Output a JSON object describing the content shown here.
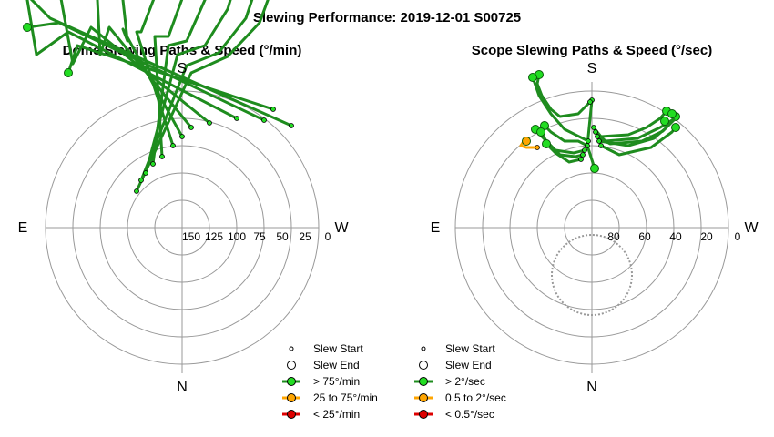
{
  "figure": {
    "title": "Slewing Performance: 2019-12-01 S00725"
  },
  "chart_data": [
    {
      "type": "polar-path",
      "title": "Dome Slewing Paths & Speed (°/min)",
      "compass": {
        "top": "S",
        "bottom": "N",
        "left": "E",
        "right": "W"
      },
      "radial_tick_labels": [
        "150",
        "125",
        "100",
        "75",
        "50",
        "25",
        "0"
      ],
      "grid": true,
      "legend": {
        "placement": "bottom-right",
        "entries": [
          {
            "label": "Slew Start",
            "marker": "small-open-circle"
          },
          {
            "label": "Slew End",
            "marker": "large-open-circle"
          },
          {
            "label": "> 75°/min",
            "color": "#1e8c1e",
            "marker_color": "#22dd22"
          },
          {
            "label": "25 to 75°/min",
            "color": "#ffa500",
            "marker_color": "#ffa500"
          },
          {
            "label": "< 25°/min",
            "color": "#dd0000",
            "marker_color": "#dd0000"
          }
        ]
      },
      "paths": [
        {
          "speed": "fast",
          "points": [
            [
              150,
              210
            ],
            [
              210,
              80
            ],
            [
              250,
              62
            ],
            [
              285,
              25
            ],
            [
              296,
              -5
            ]
          ]
        },
        {
          "speed": "fast",
          "points": [
            [
              155,
              198
            ],
            [
              205,
              72
            ],
            [
              240,
              58
            ],
            [
              270,
              20
            ],
            [
              285,
              -25
            ]
          ]
        },
        {
          "speed": "fast",
          "points": [
            [
              160,
              190
            ],
            [
              195,
              60
            ],
            [
              225,
              50
            ],
            [
              250,
              10
            ],
            [
              262,
              -30
            ]
          ]
        },
        {
          "speed": "fast",
          "points": [
            [
              168,
              180
            ],
            [
              185,
              50
            ],
            [
              205,
              45
            ],
            [
              225,
              0
            ],
            [
              240,
              -35
            ]
          ]
        },
        {
          "speed": "fast",
          "points": [
            [
              178,
              172
            ],
            [
              170,
              40
            ],
            [
              185,
              40
            ],
            [
              205,
              -15
            ],
            [
              220,
              -38
            ]
          ]
        },
        {
          "speed": "fast",
          "points": [
            [
              190,
              160
            ],
            [
              150,
              35
            ],
            [
              155,
              35
            ],
            [
              180,
              -30
            ],
            [
              195,
              -40
            ]
          ]
        },
        {
          "speed": "fast",
          "points": [
            [
              200,
              150
            ],
            [
              135,
              32
            ],
            [
              140,
              45
            ],
            [
              130,
              -45
            ]
          ]
        },
        {
          "speed": "fast",
          "points": [
            [
              210,
              140
            ],
            [
              120,
              30
            ],
            [
              110,
              60
            ],
            [
              105,
              -40
            ]
          ]
        },
        {
          "speed": "fast",
          "points": [
            [
              230,
              135
            ],
            [
              100,
              30
            ],
            [
              80,
              70
            ],
            [
              60,
              -40
            ]
          ]
        },
        {
          "speed": "fast",
          "points": [
            [
              260,
              130
            ],
            [
              75,
              35
            ],
            [
              40,
              60
            ],
            [
              20,
              -60
            ]
          ]
        },
        {
          "speed": "fast",
          "points": [
            [
              290,
              132
            ],
            [
              65,
              25
            ],
            [
              30,
              30
            ]
          ]
        },
        {
          "speed": "fast",
          "points": [
            [
              320,
              138
            ],
            [
              55,
              20
            ],
            [
              15,
              -20
            ]
          ]
        },
        {
          "speed": "fast",
          "points": [
            [
              300,
              120
            ],
            [
              85,
              50
            ],
            [
              75,
              80
            ]
          ]
        }
      ]
    },
    {
      "type": "polar-path",
      "title": "Scope Slewing Paths & Speed (°/sec)",
      "compass": {
        "top": "S",
        "bottom": "N",
        "left": "E",
        "right": "W"
      },
      "radial_tick_labels": [
        "80",
        "60",
        "40",
        "20",
        "0"
      ],
      "grid": true,
      "legend": {
        "placement": "bottom-left",
        "entries": [
          {
            "label": "Slew Start",
            "marker": "small-open-circle"
          },
          {
            "label": "Slew End",
            "marker": "large-open-circle"
          },
          {
            "label": "> 2°/sec",
            "color": "#1e8c1e",
            "marker_color": "#22dd22"
          },
          {
            "label": "0.5 to 2°/sec",
            "color": "#ffa500",
            "marker_color": "#ffa500"
          },
          {
            "label": "< 0.5°/sec",
            "color": "#dd0000",
            "marker_color": "#dd0000"
          }
        ]
      },
      "paths": [
        {
          "speed": "fast",
          "points": [
            [
              180,
              10
            ],
            [
              178,
              30
            ],
            [
              175,
              60
            ],
            [
              183,
              85
            ]
          ]
        },
        {
          "speed": "fast",
          "points": [
            [
              178,
              12
            ],
            [
              165,
              25
            ],
            [
              145,
              28
            ],
            [
              135,
              20
            ],
            [
              125,
              5
            ],
            [
              120,
              -8
            ],
            [
              122,
              -18
            ]
          ]
        },
        {
          "speed": "fast",
          "points": [
            [
              182,
              40
            ],
            [
              190,
              50
            ],
            [
              220,
              48
            ],
            [
              240,
              40
            ],
            [
              255,
              30
            ],
            [
              262,
              22
            ]
          ]
        },
        {
          "speed": "fast",
          "points": [
            [
              184,
              45
            ],
            [
              195,
              55
            ],
            [
              230,
              52
            ],
            [
              255,
              40
            ],
            [
              268,
              32
            ],
            [
              272,
              28
            ]
          ]
        },
        {
          "speed": "fast",
          "points": [
            [
              186,
              50
            ],
            [
              200,
              58
            ],
            [
              235,
              55
            ],
            [
              258,
              44
            ],
            [
              270,
              32
            ],
            [
              268,
              25
            ]
          ]
        },
        {
          "speed": "fast",
          "points": [
            [
              188,
              55
            ],
            [
              220,
              60
            ],
            [
              248,
              52
            ],
            [
              262,
              40
            ],
            [
              260,
              33
            ]
          ]
        },
        {
          "speed": "fast",
          "points": [
            [
              190,
              60
            ],
            [
              210,
              70
            ],
            [
              245,
              62
            ],
            [
              268,
              45
            ],
            [
              272,
              40
            ]
          ]
        },
        {
          "speed": "fast",
          "points": [
            [
              175,
              60
            ],
            [
              165,
              55
            ],
            [
              150,
              55
            ],
            [
              135,
              45
            ],
            [
              128,
              38
            ]
          ]
        },
        {
          "speed": "fast",
          "points": [
            [
              172,
              65
            ],
            [
              160,
              68
            ],
            [
              140,
              65
            ],
            [
              125,
              50
            ],
            [
              118,
              42
            ]
          ]
        },
        {
          "speed": "fast",
          "points": [
            [
              170,
              70
            ],
            [
              162,
              72
            ],
            [
              145,
              70
            ],
            [
              130,
              55
            ],
            [
              124,
              45
            ]
          ]
        },
        {
          "speed": "fast",
          "points": [
            [
              168,
              75
            ],
            [
              155,
              78
            ],
            [
              140,
              68
            ],
            [
              130,
              58
            ]
          ]
        },
        {
          "speed": "fast",
          "points": [
            [
              176,
              55
            ],
            [
              150,
              42
            ],
            [
              135,
              25
            ],
            [
              122,
              5
            ],
            [
              115,
              -15
            ]
          ]
        },
        {
          "speed": "medium",
          "points": [
            [
              120,
              62
            ],
            [
              108,
              62
            ],
            [
              102,
              60
            ],
            [
              104,
              57
            ],
            [
              108,
              55
            ]
          ]
        }
      ],
      "other": {
        "shaded_circle_note": "grey dashed circle"
      }
    }
  ]
}
